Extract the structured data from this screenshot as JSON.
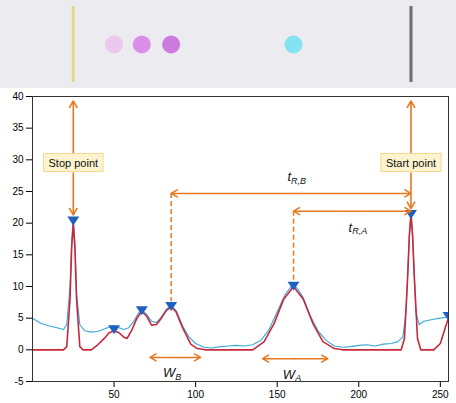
{
  "chart_data": {
    "type": "line",
    "xlim": [
      0,
      255
    ],
    "xticks": [
      50,
      100,
      150,
      200,
      250
    ],
    "ylim": [
      -5,
      40
    ],
    "yticks": [
      -5,
      0,
      5,
      10,
      15,
      20,
      25,
      30,
      35,
      40
    ],
    "series": [
      {
        "type": "line",
        "color": "#3aa8d6",
        "x": [
          0,
          5,
          10,
          15,
          19,
          21,
          23,
          24,
          25,
          26,
          27,
          29,
          32,
          36,
          40,
          44,
          47,
          50,
          53,
          56,
          59,
          62,
          65,
          67,
          70,
          73,
          76,
          79,
          82,
          85,
          88,
          92,
          96,
          100,
          105,
          110,
          115,
          120,
          125,
          130,
          135,
          140,
          145,
          150,
          155,
          158,
          160,
          163,
          166,
          170,
          175,
          180,
          185,
          190,
          195,
          200,
          205,
          210,
          215,
          220,
          224,
          227,
          229,
          230,
          231,
          232,
          233,
          234,
          235,
          237,
          240,
          245,
          250,
          255
        ],
        "values": [
          5,
          4.2,
          3.8,
          3.5,
          3.2,
          4,
          10,
          17,
          20.5,
          17,
          9,
          4,
          3,
          2.8,
          2.9,
          3.3,
          3.6,
          3.8,
          3.5,
          3.2,
          3.5,
          4.5,
          5.8,
          6.3,
          5.6,
          4.5,
          4.3,
          5.2,
          6.4,
          7,
          6.2,
          3.8,
          2,
          1,
          0.4,
          0.3,
          0.5,
          0.6,
          0.7,
          0.6,
          0.8,
          1.5,
          3.2,
          6,
          8.8,
          9.8,
          10.2,
          9.5,
          8.2,
          5.5,
          3,
          1.5,
          0.6,
          0.4,
          0.5,
          0.7,
          0.8,
          0.6,
          0.9,
          1,
          1.3,
          2,
          6,
          12,
          18,
          21.5,
          18,
          12,
          6,
          4,
          4.5,
          4.8,
          5,
          5.2
        ]
      },
      {
        "type": "line",
        "color": "#c8283c",
        "x": [
          0,
          19,
          21,
          23,
          24,
          25,
          26,
          27,
          29,
          31,
          36,
          40,
          44,
          47,
          50,
          53,
          56,
          58,
          61,
          64,
          67,
          70,
          73,
          76,
          79,
          82,
          85,
          88,
          92,
          97,
          101,
          106,
          135,
          142,
          148,
          154,
          160,
          166,
          172,
          178,
          185,
          190,
          226,
          228,
          230,
          231,
          232,
          233,
          234,
          236,
          238,
          246,
          250,
          253,
          255
        ],
        "values": [
          0,
          0,
          0.5,
          8,
          16,
          20,
          16,
          8,
          0.5,
          0,
          0,
          0.8,
          1.8,
          2.7,
          3,
          2.7,
          2,
          1.8,
          3.2,
          5,
          6.1,
          5.3,
          3.9,
          4,
          5,
          6.2,
          6.8,
          6,
          3.5,
          0.9,
          0.2,
          0,
          0,
          1.3,
          4.1,
          8,
          10,
          8,
          4.1,
          1.3,
          0.2,
          0,
          0,
          1.8,
          11.7,
          18,
          21.5,
          18,
          11.7,
          1.8,
          0,
          0,
          1,
          3.5,
          5
        ]
      }
    ],
    "peaks": {
      "marker": "triangle-down",
      "color": "#1f5fbf",
      "x": [
        25,
        50,
        67,
        85,
        160,
        232,
        255
      ],
      "values": [
        20.5,
        3.3,
        6.3,
        7,
        10.2,
        21.5,
        5.4
      ]
    },
    "labels": [
      {
        "text": "Stop point",
        "x": 25
      },
      {
        "text": "Start point",
        "x": 232
      }
    ],
    "spans": [
      {
        "text": "t",
        "subscript": "R,B",
        "from": 85,
        "to": 232
      },
      {
        "text": "t",
        "subscript": "R,A",
        "from": 160,
        "to": 232
      },
      {
        "text": "W",
        "subscript": "B",
        "from": 72,
        "to": 103
      },
      {
        "text": "W",
        "subscript": "A",
        "from": 141,
        "to": 181
      }
    ],
    "plate": {
      "lines": [
        {
          "x": 25,
          "color": "#e6d68a"
        },
        {
          "x": 232,
          "color": "#6e6e6e"
        }
      ],
      "spots": [
        {
          "x": 50,
          "color": "#ecc2ec"
        },
        {
          "x": 67,
          "color": "#d77ee6"
        },
        {
          "x": 85,
          "color": "#c766dc"
        },
        {
          "x": 160,
          "color": "#72e2f2"
        }
      ]
    }
  }
}
